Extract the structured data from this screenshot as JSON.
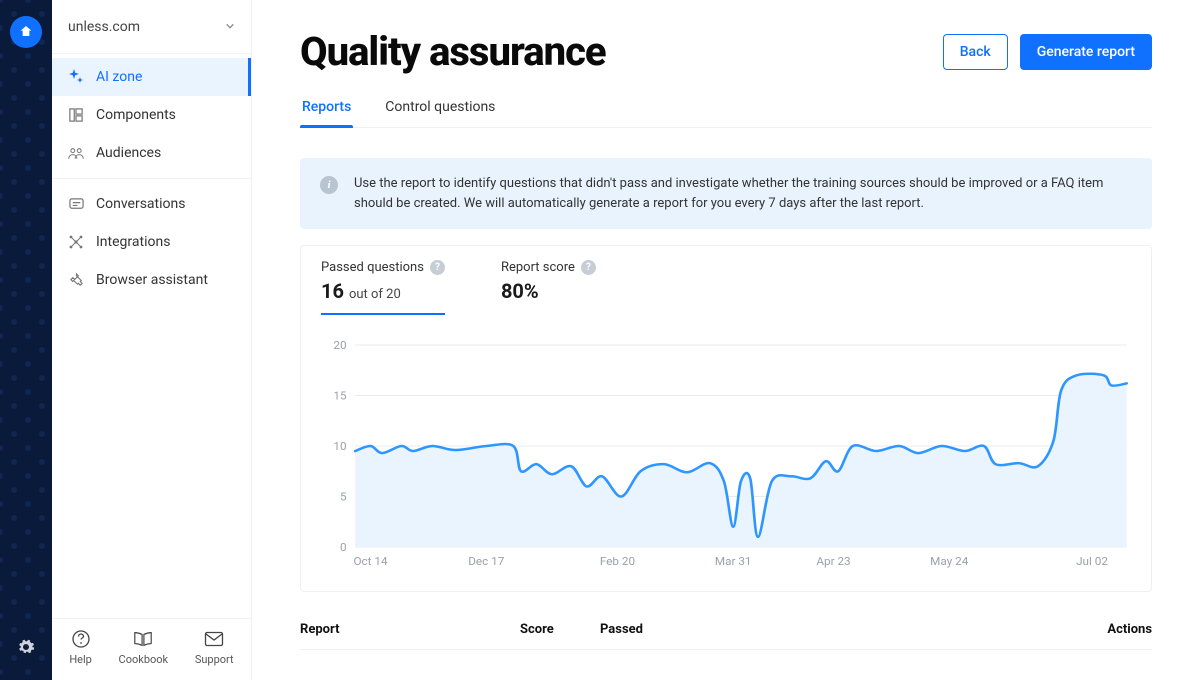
{
  "site": {
    "name": "unless.com"
  },
  "sidebar": {
    "items": [
      {
        "id": "ai-zone",
        "label": "AI zone"
      },
      {
        "id": "components",
        "label": "Components"
      },
      {
        "id": "audiences",
        "label": "Audiences"
      },
      {
        "id": "conversations",
        "label": "Conversations"
      },
      {
        "id": "integrations",
        "label": "Integrations"
      },
      {
        "id": "browser-assistant",
        "label": "Browser assistant"
      }
    ],
    "active": "ai-zone",
    "footer": [
      {
        "id": "help",
        "label": "Help"
      },
      {
        "id": "cookbook",
        "label": "Cookbook"
      },
      {
        "id": "support",
        "label": "Support"
      }
    ]
  },
  "page": {
    "title": "Quality assurance",
    "buttons": {
      "back": "Back",
      "generate": "Generate report"
    },
    "tabs": [
      {
        "id": "reports",
        "label": "Reports"
      },
      {
        "id": "control",
        "label": "Control questions"
      }
    ],
    "active_tab": "reports"
  },
  "banner": {
    "text": "Use the report to identify questions that didn't pass and investigate whether the training sources should be improved or a FAQ item should be created. We will automatically generate a report for you every 7 days after the last report."
  },
  "metrics": {
    "passed": {
      "label": "Passed questions",
      "value": "16",
      "suffix": "out of 20",
      "selected": true
    },
    "score": {
      "label": "Report score",
      "value": "80%"
    }
  },
  "chart": {
    "type": "area",
    "ylim": [
      0,
      20
    ],
    "yticks": [
      0,
      5,
      10,
      15,
      20
    ],
    "xticks": [
      "Oct 14",
      "Dec 17",
      "Feb 20",
      "Mar 31",
      "Apr 23",
      "May 24",
      "Jul 02"
    ],
    "xtick_positions": [
      0.02,
      0.17,
      0.34,
      0.49,
      0.62,
      0.77,
      0.955
    ],
    "line_color": "#2e97ff",
    "fill_color": "#eaf4fe",
    "line_width": 2.5,
    "grid_color": "#e8ebee",
    "axis_text_color": "#9aa1a9",
    "background_color": "#ffffff",
    "series": [
      {
        "x": 0.0,
        "y": 9.5
      },
      {
        "x": 0.02,
        "y": 10.0
      },
      {
        "x": 0.035,
        "y": 9.3
      },
      {
        "x": 0.06,
        "y": 10.0
      },
      {
        "x": 0.075,
        "y": 9.5
      },
      {
        "x": 0.1,
        "y": 10.0
      },
      {
        "x": 0.13,
        "y": 9.6
      },
      {
        "x": 0.17,
        "y": 10.0
      },
      {
        "x": 0.205,
        "y": 10.0
      },
      {
        "x": 0.215,
        "y": 7.5
      },
      {
        "x": 0.235,
        "y": 8.2
      },
      {
        "x": 0.255,
        "y": 7.2
      },
      {
        "x": 0.28,
        "y": 8.0
      },
      {
        "x": 0.3,
        "y": 6.0
      },
      {
        "x": 0.32,
        "y": 7.0
      },
      {
        "x": 0.345,
        "y": 5.0
      },
      {
        "x": 0.37,
        "y": 7.5
      },
      {
        "x": 0.4,
        "y": 8.2
      },
      {
        "x": 0.43,
        "y": 7.4
      },
      {
        "x": 0.46,
        "y": 8.3
      },
      {
        "x": 0.478,
        "y": 6.5
      },
      {
        "x": 0.49,
        "y": 2.0
      },
      {
        "x": 0.5,
        "y": 6.5
      },
      {
        "x": 0.512,
        "y": 6.8
      },
      {
        "x": 0.522,
        "y": 1.0
      },
      {
        "x": 0.54,
        "y": 6.5
      },
      {
        "x": 0.565,
        "y": 7.0
      },
      {
        "x": 0.59,
        "y": 6.8
      },
      {
        "x": 0.61,
        "y": 8.5
      },
      {
        "x": 0.626,
        "y": 7.5
      },
      {
        "x": 0.645,
        "y": 10.0
      },
      {
        "x": 0.675,
        "y": 9.5
      },
      {
        "x": 0.705,
        "y": 10.0
      },
      {
        "x": 0.73,
        "y": 9.3
      },
      {
        "x": 0.76,
        "y": 10.0
      },
      {
        "x": 0.79,
        "y": 9.5
      },
      {
        "x": 0.815,
        "y": 10.0
      },
      {
        "x": 0.83,
        "y": 8.2
      },
      {
        "x": 0.86,
        "y": 8.3
      },
      {
        "x": 0.885,
        "y": 8.0
      },
      {
        "x": 0.905,
        "y": 10.5
      },
      {
        "x": 0.915,
        "y": 15.5
      },
      {
        "x": 0.935,
        "y": 17.0
      },
      {
        "x": 0.97,
        "y": 17.0
      },
      {
        "x": 0.98,
        "y": 16.0
      },
      {
        "x": 1.0,
        "y": 16.2
      }
    ]
  },
  "table": {
    "headers": {
      "report": "Report",
      "score": "Score",
      "passed": "Passed",
      "actions": "Actions"
    }
  },
  "colors": {
    "accent": "#1070ff",
    "rail_bg": "#0a1a3a",
    "banner_bg": "#e9f3fd",
    "border": "#eef0f2"
  }
}
